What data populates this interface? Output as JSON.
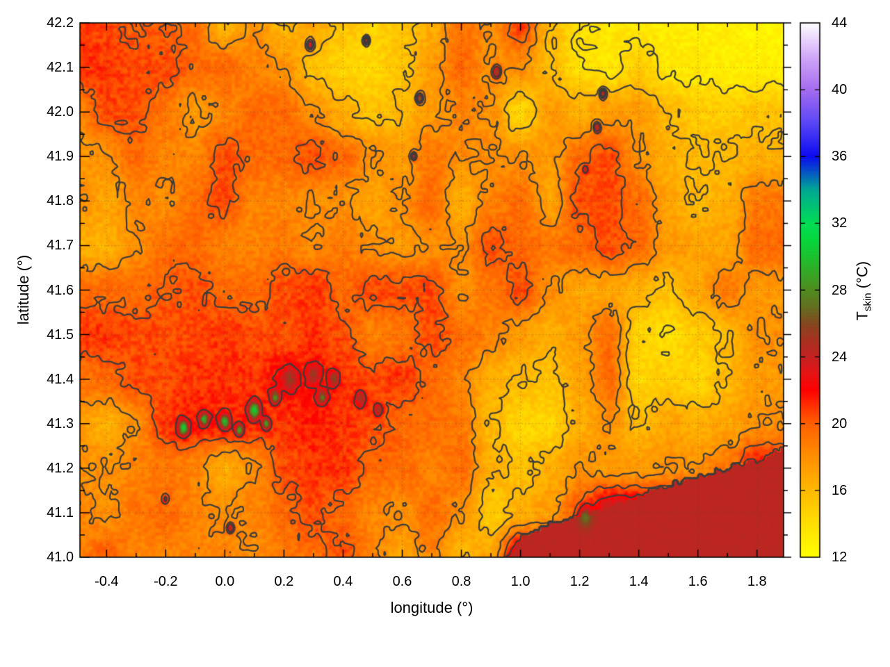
{
  "chart_data": {
    "type": "heatmap",
    "title": "",
    "xlabel": "longitude (°)",
    "ylabel": "latitude (°)",
    "xlim": [
      -0.49,
      1.89
    ],
    "ylim": [
      41.0,
      42.2
    ],
    "grid_dotted": true,
    "x_ticks": {
      "values": [
        -0.4,
        -0.2,
        0.0,
        0.2,
        0.4,
        0.6,
        0.8,
        1.0,
        1.2,
        1.4,
        1.6,
        1.8
      ],
      "labels": [
        "-0.4",
        "-0.2",
        "0.0",
        "0.2",
        "0.4",
        "0.6",
        "0.8",
        "1.0",
        "1.2",
        "1.4",
        "1.6",
        "1.8"
      ],
      "minor_step": 0.1
    },
    "y_ticks": {
      "values": [
        41.0,
        41.1,
        41.2,
        41.3,
        41.4,
        41.5,
        41.6,
        41.7,
        41.8,
        41.9,
        42.0,
        42.1,
        42.2
      ],
      "labels": [
        "41.0",
        "41.1",
        "41.2",
        "41.3",
        "41.4",
        "41.5",
        "41.6",
        "41.7",
        "41.8",
        "41.9",
        "42.0",
        "42.1",
        "42.2"
      ],
      "minor_step": 0.05
    },
    "colorbar": {
      "title_main": "T",
      "title_sub": "skin",
      "title_unit": " (°C)",
      "min": 12,
      "max": 44,
      "ticks": [
        12,
        16,
        20,
        24,
        28,
        32,
        36,
        40,
        44
      ],
      "tick_labels": [
        "12",
        "16",
        "20",
        "24",
        "28",
        "32",
        "36",
        "40",
        "44"
      ],
      "palette": [
        [
          12,
          "#ffff00"
        ],
        [
          14,
          "#ffdf00"
        ],
        [
          16,
          "#ffb900"
        ],
        [
          18,
          "#ff9000"
        ],
        [
          20,
          "#ff5f00"
        ],
        [
          21,
          "#ff3300"
        ],
        [
          22,
          "#fe0000"
        ],
        [
          23,
          "#e61414"
        ],
        [
          24,
          "#c42121"
        ],
        [
          25,
          "#a8311f"
        ],
        [
          26,
          "#84481f"
        ],
        [
          27,
          "#637020"
        ],
        [
          28,
          "#4f8c1e"
        ],
        [
          29,
          "#37a626"
        ],
        [
          30,
          "#1cc12e"
        ],
        [
          31,
          "#06d73c"
        ],
        [
          32,
          "#00dd55"
        ],
        [
          34,
          "#00a895"
        ],
        [
          36,
          "#0b0bf0"
        ],
        [
          38,
          "#5a46f5"
        ],
        [
          40,
          "#a56cf0"
        ],
        [
          42,
          "#d2a9f8"
        ],
        [
          44,
          "#ffffff"
        ]
      ]
    },
    "contour_levels": [
      14,
      16,
      18,
      20,
      22
    ],
    "contour_color": "#3c3c3c",
    "sea_temp": 24.3,
    "coastline": [
      [
        0.93,
        40.99
      ],
      [
        0.97,
        41.0
      ],
      [
        1.0,
        41.04
      ],
      [
        1.05,
        41.06
      ],
      [
        1.1,
        41.075
      ],
      [
        1.15,
        41.08
      ],
      [
        1.2,
        41.09
      ],
      [
        1.25,
        41.1
      ],
      [
        1.3,
        41.11
      ],
      [
        1.35,
        41.125
      ],
      [
        1.4,
        41.135
      ],
      [
        1.45,
        41.15
      ],
      [
        1.5,
        41.16
      ],
      [
        1.55,
        41.17
      ],
      [
        1.6,
        41.18
      ],
      [
        1.65,
        41.19
      ],
      [
        1.7,
        41.2
      ],
      [
        1.75,
        41.21
      ],
      [
        1.8,
        41.215
      ],
      [
        1.85,
        41.23
      ],
      [
        1.9,
        41.25
      ]
    ],
    "field": {
      "lon": [
        -0.5,
        -0.4,
        -0.3,
        -0.2,
        -0.1,
        0.0,
        0.1,
        0.2,
        0.3,
        0.4,
        0.5,
        0.6,
        0.7,
        0.8,
        0.9,
        1.0,
        1.1,
        1.2,
        1.3,
        1.4,
        1.5,
        1.6,
        1.7,
        1.8
      ],
      "lat": [
        42.2,
        42.1,
        42.0,
        41.9,
        41.8,
        41.7,
        41.6,
        41.5,
        41.4,
        41.3,
        41.2,
        41.1,
        41.0
      ],
      "t": [
        [
          21,
          20.5,
          20,
          20,
          19.5,
          16,
          18,
          16,
          17,
          15.5,
          14.5,
          15.5,
          16.5,
          19.5,
          18,
          21,
          16,
          14,
          13.5,
          13.5,
          13,
          13,
          13,
          12.5
        ],
        [
          21,
          21,
          20.5,
          20.5,
          19.5,
          19.5,
          18.5,
          18,
          15.5,
          14.5,
          14.5,
          15.5,
          17.5,
          19.5,
          18,
          18,
          16,
          14,
          13.5,
          15,
          13.5,
          13.5,
          13,
          13
        ],
        [
          18.5,
          20.5,
          20.5,
          19,
          17.5,
          18.5,
          19.5,
          19.5,
          18,
          16.5,
          15.5,
          16,
          17.5,
          18.5,
          18,
          14.5,
          17.5,
          16.5,
          17.5,
          17.5,
          16,
          15,
          15,
          15.5
        ],
        [
          17.5,
          18,
          19.5,
          18.5,
          18.5,
          20.5,
          19.5,
          19.5,
          20.5,
          19.5,
          18,
          17.5,
          19,
          18,
          18,
          18,
          17.5,
          19.5,
          20.5,
          18,
          16.5,
          16,
          16,
          16.5
        ],
        [
          18,
          17,
          18.5,
          18,
          19.5,
          20.5,
          18.5,
          18.5,
          18,
          18,
          17,
          18,
          19.5,
          16.5,
          18.5,
          19.5,
          17,
          20.5,
          20.5,
          19.5,
          17,
          16,
          16.5,
          19
        ],
        [
          16.5,
          16.5,
          18,
          19.5,
          19.5,
          18.5,
          18.5,
          19,
          18,
          19,
          18,
          17.5,
          18,
          18,
          20.5,
          19.5,
          19,
          19.5,
          20.5,
          19.5,
          17.5,
          17,
          17,
          19.5
        ],
        [
          19.5,
          19.5,
          19.5,
          20,
          20.5,
          19.5,
          19.5,
          20.5,
          21,
          19.5,
          20.5,
          20.5,
          20.5,
          18,
          19,
          20.5,
          18,
          17,
          17,
          16.5,
          15.5,
          17,
          19,
          17.5
        ],
        [
          21,
          21,
          20.5,
          20.5,
          20.5,
          21,
          20.5,
          20.5,
          21,
          20.5,
          18.5,
          19,
          20.5,
          19.5,
          18.5,
          17.5,
          16.5,
          17.5,
          19.5,
          14.5,
          14,
          15,
          16,
          18
        ],
        [
          19,
          19.5,
          20.5,
          20.5,
          21,
          21,
          21,
          22,
          21.5,
          21,
          20.5,
          21,
          19.5,
          18.5,
          16.5,
          16,
          15.5,
          17,
          19.5,
          14.5,
          15,
          14.5,
          16,
          17.5
        ],
        [
          17.5,
          16.5,
          18,
          21,
          21.5,
          21.5,
          21,
          21,
          21.5,
          21,
          20.5,
          19.5,
          19.5,
          19,
          16,
          14.5,
          14.5,
          16.5,
          18,
          16,
          17,
          16.5,
          17,
          18
        ],
        [
          18,
          18,
          18.5,
          19,
          18.5,
          16.5,
          18,
          20.5,
          21,
          21,
          19.5,
          19.5,
          18.5,
          19.5,
          16.5,
          15.5,
          16.5,
          18,
          17.5,
          17.5,
          18,
          18,
          19,
          22
        ],
        [
          18.5,
          18,
          19,
          19.5,
          18.5,
          18,
          18.5,
          19.5,
          20.5,
          19.5,
          18.5,
          18,
          19.5,
          18,
          15,
          16.5,
          17.5,
          20,
          24,
          24,
          24,
          24,
          24,
          24
        ],
        [
          18.5,
          20,
          18.5,
          18.5,
          18.5,
          18.5,
          18,
          19,
          19.5,
          20.5,
          18.5,
          17,
          18.5,
          16,
          17,
          24,
          24,
          24,
          24,
          24,
          24,
          24,
          24,
          24
        ]
      ]
    },
    "warm_spots": [
      [
        -0.14,
        41.29,
        30,
        0.022
      ],
      [
        -0.07,
        41.31,
        29.5,
        0.018
      ],
      [
        0.0,
        41.305,
        30,
        0.02
      ],
      [
        0.05,
        41.285,
        29.5,
        0.016
      ],
      [
        0.1,
        41.33,
        30.5,
        0.025
      ],
      [
        0.14,
        41.3,
        29,
        0.016
      ],
      [
        0.17,
        41.36,
        28,
        0.018
      ],
      [
        0.22,
        41.4,
        25.5,
        0.03
      ],
      [
        0.3,
        41.41,
        25.5,
        0.028
      ],
      [
        0.33,
        41.36,
        27,
        0.02
      ],
      [
        0.37,
        41.4,
        26,
        0.022
      ],
      [
        0.46,
        41.355,
        25,
        0.024
      ],
      [
        0.52,
        41.33,
        24.5,
        0.02
      ],
      [
        0.29,
        42.15,
        24.5,
        0.016
      ],
      [
        0.48,
        42.16,
        25,
        0.012
      ],
      [
        0.92,
        42.09,
        26,
        0.018
      ],
      [
        0.66,
        42.03,
        26.5,
        0.014
      ],
      [
        0.64,
        41.9,
        25,
        0.012
      ],
      [
        1.28,
        42.04,
        25.5,
        0.014
      ],
      [
        1.26,
        41.965,
        25.5,
        0.014
      ],
      [
        1.22,
        41.87,
        24.5,
        0.012
      ],
      [
        0.02,
        41.065,
        25.5,
        0.014
      ],
      [
        1.22,
        41.09,
        27,
        0.03
      ],
      [
        -0.2,
        41.13,
        23,
        0.012
      ]
    ]
  }
}
